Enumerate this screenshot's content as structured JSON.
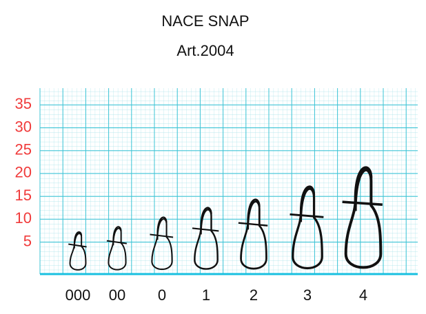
{
  "chart_data": {
    "type": "snap",
    "title": "NACE SNAP",
    "subtitle": "Art.2004",
    "categories": [
      "000",
      "00",
      "0",
      "1",
      "2",
      "3",
      "4"
    ],
    "values": [
      7.7,
      8.9,
      11.1,
      13.3,
      15.2,
      18.2,
      22.6
    ],
    "color": "#111111",
    "grid_color": "#3cc4d6",
    "ylim": [
      -2,
      37
    ],
    "yticks": [
      5,
      10,
      15,
      20,
      25,
      30,
      35
    ],
    "grid": true
  }
}
